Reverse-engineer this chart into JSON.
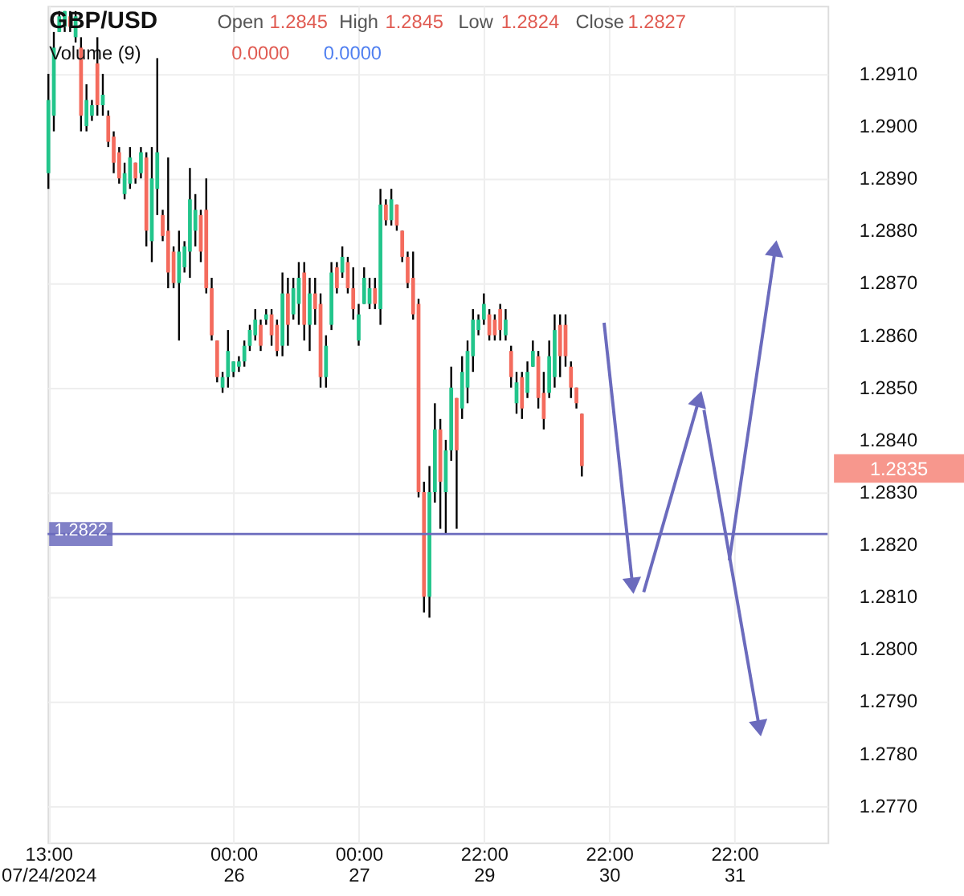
{
  "chart_data": {
    "type": "candlestick",
    "title": "GBP/USD",
    "annotations": [
      "Open",
      "1.2845",
      "High",
      "1.2845",
      "Low",
      "1.2824",
      "Close",
      "1.2827",
      "Volume (9)",
      "0.0000",
      "0.0000",
      "1.2835"
    ],
    "categories": [
      "13:00\n07/24/2024",
      null,
      null,
      null,
      null,
      null,
      null,
      null,
      null,
      null,
      null,
      null,
      null,
      null,
      null,
      null,
      null,
      null,
      null,
      null,
      null,
      null,
      null,
      null,
      null,
      null,
      null,
      null,
      null,
      null,
      null,
      null,
      null,
      null,
      "00:00\n26",
      null,
      null,
      null,
      null,
      null,
      null,
      null,
      null,
      null,
      null,
      null,
      null,
      null,
      null,
      null,
      null,
      null,
      null,
      null,
      null,
      null,
      null,
      "00:00\n27",
      null,
      null,
      null,
      null,
      null,
      null,
      null,
      null,
      null,
      null,
      null,
      null,
      null,
      null,
      null,
      null,
      null,
      null,
      null,
      null,
      null,
      null,
      "22:00\n29",
      null,
      null,
      null,
      null,
      null,
      null,
      null,
      null,
      null,
      null,
      null,
      null,
      null,
      null,
      null,
      null,
      null,
      null,
      null,
      null,
      null,
      null,
      "22:00\n30",
      null,
      null,
      null,
      null,
      null,
      null,
      null,
      null,
      null,
      null,
      null,
      null,
      null,
      null,
      null,
      null,
      null,
      null,
      null,
      null,
      null,
      null,
      "22:00\n31",
      null,
      null,
      null,
      null,
      null,
      null,
      null,
      null,
      null,
      null,
      null,
      null,
      null,
      null,
      null,
      null,
      null
    ],
    "ohlc": [
      [
        1.2891,
        1.291,
        1.2888,
        1.2905
      ],
      [
        1.2902,
        1.2918,
        1.2899,
        1.2915
      ],
      [
        1.2918,
        1.2922,
        1.2918,
        1.2921
      ],
      [
        1.2919,
        1.2922,
        1.2918,
        1.2922
      ],
      [
        1.2921,
        1.2922,
        1.2918,
        1.2919
      ],
      [
        1.2917,
        1.2922,
        1.2916,
        1.2921
      ],
      [
        1.2915,
        1.2917,
        1.2899,
        1.2902
      ],
      [
        1.29,
        1.2908,
        1.2899,
        1.2905
      ],
      [
        1.2902,
        1.2905,
        1.2901,
        1.2904
      ],
      [
        1.2912,
        1.2917,
        1.2902,
        1.2904
      ],
      [
        1.2904,
        1.291,
        1.2902,
        1.2906
      ],
      [
        1.2902,
        1.2903,
        1.2896,
        1.2897
      ],
      [
        1.2898,
        1.2899,
        1.2891,
        1.2893
      ],
      [
        1.2895,
        1.2896,
        1.2889,
        1.289
      ],
      [
        1.2887,
        1.2893,
        1.2886,
        1.2891
      ],
      [
        1.2889,
        1.2896,
        1.2888,
        1.2894
      ],
      [
        1.2893,
        1.2893,
        1.2889,
        1.289
      ],
      [
        1.2891,
        1.2896,
        1.289,
        1.2895
      ],
      [
        1.2894,
        1.2895,
        1.2877,
        1.288
      ],
      [
        1.2878,
        1.2896,
        1.2874,
        1.289
      ],
      [
        1.2888,
        1.2913,
        1.2883,
        1.2895
      ],
      [
        1.2883,
        1.2884,
        1.2878,
        1.2879
      ],
      [
        1.288,
        1.2894,
        1.2869,
        1.2872
      ],
      [
        1.2876,
        1.2877,
        1.2869,
        1.287
      ],
      [
        1.287,
        1.288,
        1.2859,
        1.2876
      ],
      [
        1.2873,
        1.2878,
        1.2872,
        1.2877
      ],
      [
        1.2876,
        1.2892,
        1.2871,
        1.2886
      ],
      [
        1.288,
        1.2887,
        1.2877,
        1.2884
      ],
      [
        1.2883,
        1.2884,
        1.2874,
        1.2876
      ],
      [
        1.2884,
        1.289,
        1.2868,
        1.2869
      ],
      [
        1.2869,
        1.2871,
        1.2859,
        1.286
      ],
      [
        1.2859,
        1.2859,
        1.2851,
        1.2852
      ],
      [
        1.285,
        1.2853,
        1.2849,
        1.2852
      ],
      [
        1.2852,
        1.2861,
        1.285,
        1.2857
      ],
      [
        1.2853,
        1.2855,
        1.2852,
        1.2855
      ],
      [
        1.2854,
        1.2856,
        1.2853,
        1.2855
      ],
      [
        1.2855,
        1.2859,
        1.2854,
        1.2858
      ],
      [
        1.2858,
        1.2862,
        1.2857,
        1.2861
      ],
      [
        1.286,
        1.2865,
        1.2859,
        1.2863
      ],
      [
        1.2862,
        1.2863,
        1.2857,
        1.2858
      ],
      [
        1.2863,
        1.2865,
        1.2862,
        1.2864
      ],
      [
        1.2864,
        1.2865,
        1.2858,
        1.286
      ],
      [
        1.2862,
        1.2863,
        1.2856,
        1.2857
      ],
      [
        1.2858,
        1.2872,
        1.2856,
        1.2868
      ],
      [
        1.2868,
        1.2871,
        1.2858,
        1.2862
      ],
      [
        1.2864,
        1.2871,
        1.2863,
        1.2869
      ],
      [
        1.2866,
        1.2874,
        1.2862,
        1.2871
      ],
      [
        1.2872,
        1.2874,
        1.2859,
        1.2862
      ],
      [
        1.2862,
        1.2871,
        1.2857,
        1.2868
      ],
      [
        1.2868,
        1.2871,
        1.2862,
        1.2865
      ],
      [
        1.2866,
        1.2868,
        1.285,
        1.2852
      ],
      [
        1.2852,
        1.286,
        1.285,
        1.2858
      ],
      [
        1.2862,
        1.2874,
        1.2861,
        1.2872
      ],
      [
        1.2873,
        1.2874,
        1.2868,
        1.2869
      ],
      [
        1.2872,
        1.2877,
        1.2871,
        1.2875
      ],
      [
        1.2874,
        1.2875,
        1.2868,
        1.2869
      ],
      [
        1.2869,
        1.2873,
        1.2863,
        1.2865
      ],
      [
        1.2859,
        1.2866,
        1.2858,
        1.2864
      ],
      [
        1.2866,
        1.2873,
        1.2866,
        1.2871
      ],
      [
        1.2866,
        1.2871,
        1.2865,
        1.2869
      ],
      [
        1.2869,
        1.2871,
        1.2865,
        1.2866
      ],
      [
        1.2865,
        1.2888,
        1.2862,
        1.2885
      ],
      [
        1.2885,
        1.2886,
        1.2881,
        1.2882
      ],
      [
        1.2882,
        1.2888,
        1.2881,
        1.2886
      ],
      [
        1.2885,
        1.2885,
        1.288,
        1.2881
      ],
      [
        1.288,
        1.288,
        1.2874,
        1.2875
      ],
      [
        1.2875,
        1.2876,
        1.2869,
        1.287
      ],
      [
        1.2871,
        1.2876,
        1.2863,
        1.2864
      ],
      [
        1.2866,
        1.2867,
        1.2829,
        1.283
      ],
      [
        1.283,
        1.2832,
        1.2807,
        1.281
      ],
      [
        1.281,
        1.2835,
        1.2806,
        1.283
      ],
      [
        1.283,
        1.2847,
        1.2828,
        1.2842
      ],
      [
        1.2842,
        1.2844,
        1.2823,
        1.2832
      ],
      [
        1.283,
        1.284,
        1.2822,
        1.2838
      ],
      [
        1.2838,
        1.2854,
        1.2836,
        1.285
      ],
      [
        1.2848,
        1.2848,
        1.2823,
        1.2838
      ],
      [
        1.2846,
        1.2856,
        1.2844,
        1.2853
      ],
      [
        1.285,
        1.2859,
        1.2847,
        1.2857
      ],
      [
        1.2856,
        1.2865,
        1.2853,
        1.2863
      ],
      [
        1.2861,
        1.2864,
        1.286,
        1.2863
      ],
      [
        1.2863,
        1.2868,
        1.2862,
        1.2866
      ],
      [
        1.2864,
        1.2865,
        1.2859,
        1.286
      ],
      [
        1.2863,
        1.2864,
        1.2859,
        1.286
      ],
      [
        1.2865,
        1.2866,
        1.2859,
        1.2861
      ],
      [
        1.286,
        1.2865,
        1.2859,
        1.2863
      ],
      [
        1.2857,
        1.2858,
        1.285,
        1.2852
      ],
      [
        1.2847,
        1.2853,
        1.2845,
        1.2851
      ],
      [
        1.2852,
        1.2853,
        1.2844,
        1.2846
      ],
      [
        1.2849,
        1.2855,
        1.2848,
        1.2853
      ],
      [
        1.2854,
        1.2859,
        1.2854,
        1.2857
      ],
      [
        1.2856,
        1.2857,
        1.2846,
        1.2848
      ],
      [
        1.2849,
        1.2853,
        1.2842,
        1.2844
      ],
      [
        1.2849,
        1.2859,
        1.2848,
        1.2856
      ],
      [
        1.2852,
        1.2864,
        1.285,
        1.2861
      ],
      [
        1.2862,
        1.2864,
        1.2852,
        1.2856
      ],
      [
        1.2862,
        1.2864,
        1.2854,
        1.2856
      ],
      [
        1.2854,
        1.2855,
        1.2848,
        1.285
      ],
      [
        1.285,
        1.285,
        1.2846,
        1.2847
      ],
      [
        1.2845,
        1.2845,
        1.2833,
        1.2835
      ],
      null,
      null,
      null,
      null,
      null,
      null,
      null,
      null,
      null,
      null,
      null,
      null,
      null,
      null,
      null,
      null,
      null,
      null,
      null,
      null,
      null,
      null,
      null,
      null,
      null,
      null,
      null,
      null,
      null,
      null,
      null,
      null,
      null,
      null,
      null,
      null,
      null,
      null,
      null,
      null,
      null,
      null,
      null,
      null,
      null
    ],
    "colors": [
      "#22c58b",
      "#22c58b",
      "#22c58b",
      "#22c58b",
      "#f46b5d",
      "#22c58b",
      "#f46b5d",
      "#22c58b",
      "#22c58b",
      "#f46b5d",
      "#22c58b",
      "#f46b5d",
      "#f46b5d",
      "#f46b5d",
      "#22c58b",
      "#22c58b",
      "#f46b5d",
      "#22c58b",
      "#f46b5d",
      "#22c58b",
      "#22c58b",
      "#f46b5d",
      "#f46b5d",
      "#f46b5d",
      "#22c58b",
      "#22c58b",
      "#22c58b",
      "#22c58b",
      "#f46b5d",
      "#f46b5d",
      "#f46b5d",
      "#f46b5d",
      "#22c58b",
      "#22c58b",
      "#22c58b",
      "#22c58b",
      "#22c58b",
      "#22c58b",
      "#22c58b",
      "#f46b5d",
      "#22c58b",
      "#f46b5d",
      "#f46b5d",
      "#22c58b",
      "#f46b5d",
      "#22c58b",
      "#22c58b",
      "#f46b5d",
      "#22c58b",
      "#f46b5d",
      "#f46b5d",
      "#22c58b",
      "#22c58b",
      "#f46b5d",
      "#22c58b",
      "#f46b5d",
      "#f46b5d",
      "#22c58b",
      "#22c58b",
      "#22c58b",
      "#f46b5d",
      "#22c58b",
      "#f46b5d",
      "#22c58b",
      "#f46b5d",
      "#f46b5d",
      "#f46b5d",
      "#f46b5d",
      "#f46b5d",
      "#f46b5d",
      "#22c58b",
      "#22c58b",
      "#f46b5d",
      "#22c58b",
      "#22c58b",
      "#f46b5d",
      "#22c58b",
      "#22c58b",
      "#22c58b",
      "#22c58b",
      "#22c58b",
      "#f46b5d",
      "#f46b5d",
      "#f46b5d",
      "#22c58b",
      "#f46b5d",
      "#22c58b",
      "#f46b5d",
      "#22c58b",
      "#22c58b",
      "#f46b5d",
      "#f46b5d",
      "#22c58b",
      "#22c58b",
      "#f46b5d",
      "#f46b5d",
      "#f46b5d",
      "#f46b5d",
      "#f46b5d",
      null,
      null,
      null,
      null,
      null,
      null,
      null,
      null,
      null,
      null,
      null,
      null,
      null,
      null,
      null,
      null,
      null,
      null,
      null,
      null,
      null,
      null,
      null,
      null,
      null,
      null,
      null,
      null,
      null,
      null,
      null,
      null,
      null,
      null,
      null,
      null,
      null,
      null,
      null,
      null,
      null,
      null,
      null,
      null,
      null
    ],
    "ref_lines": [
      {
        "axis": "y",
        "value": 1.2822,
        "label": "1.2822",
        "color": "#6b6bbd"
      }
    ],
    "ylim": [
      1.2763,
      1.2923
    ],
    "yticks": [
      {
        "value": 1.277,
        "label": "1.2770"
      },
      {
        "value": 1.278,
        "label": "1.2780"
      },
      {
        "value": 1.279,
        "label": "1.2790"
      },
      {
        "value": 1.28,
        "label": "1.2800"
      },
      {
        "value": 1.281,
        "label": "1.2810"
      },
      {
        "value": 1.282,
        "label": "1.2820"
      },
      {
        "value": 1.283,
        "label": "1.2830"
      },
      {
        "value": 1.284,
        "label": "1.2840"
      },
      {
        "value": 1.285,
        "label": "1.2850"
      },
      {
        "value": 1.286,
        "label": "1.2860"
      },
      {
        "value": 1.287,
        "label": "1.2870"
      },
      {
        "value": 1.288,
        "label": "1.2880"
      },
      {
        "value": 1.289,
        "label": "1.2890"
      },
      {
        "value": 1.29,
        "label": "1.2900"
      },
      {
        "value": 1.291,
        "label": "1.2910"
      }
    ],
    "grid": true
  }
}
